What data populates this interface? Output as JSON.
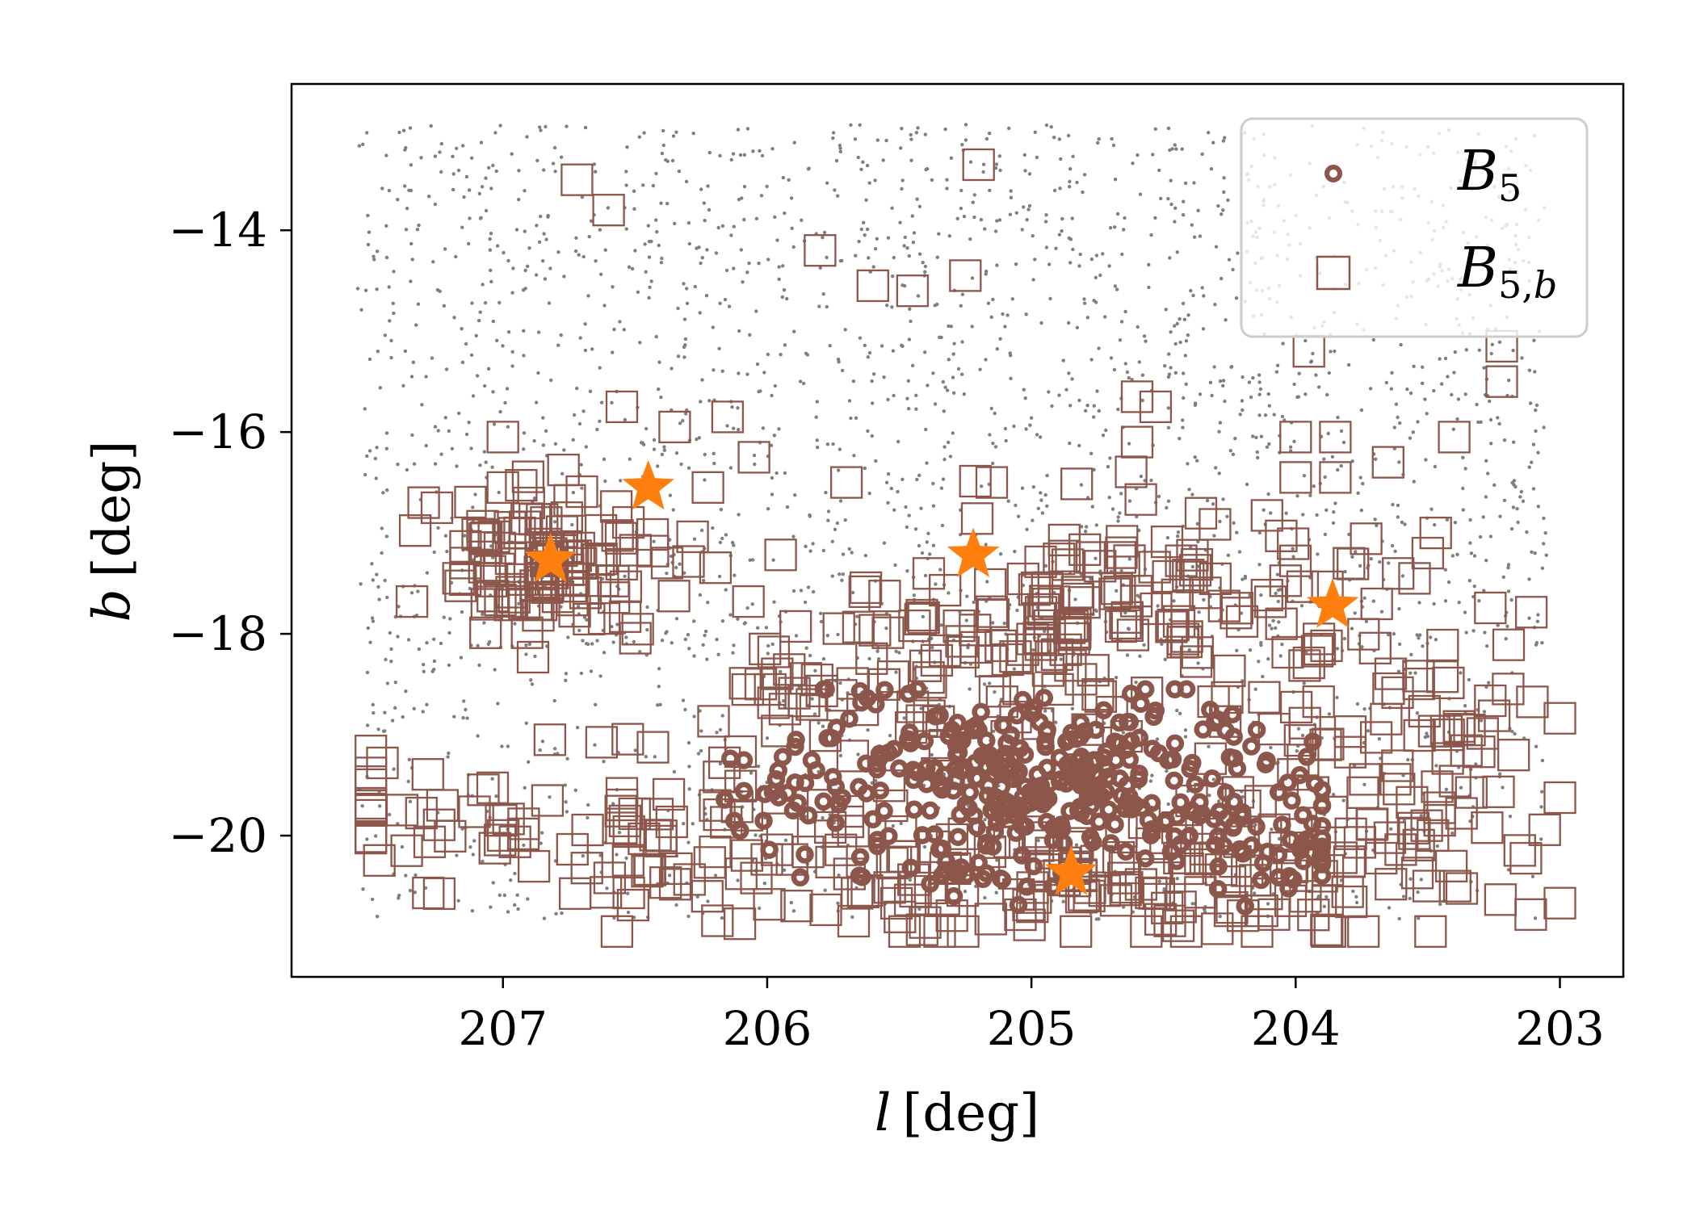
{
  "chart_data": {
    "type": "scatter",
    "xlabel_var": "l",
    "xlabel_unit": "[deg]",
    "ylabel_var": "b",
    "ylabel_unit": "[deg]",
    "xlim": [
      207.8,
      202.76
    ],
    "ylim": [
      -21.4,
      -12.55
    ],
    "x_ticks": [
      207,
      206,
      205,
      204,
      203
    ],
    "x_tick_labels": [
      "207",
      "206",
      "205",
      "204",
      "203"
    ],
    "y_ticks": [
      -14,
      -16,
      -18,
      -20
    ],
    "y_tick_labels": [
      "−14",
      "−16",
      "−18",
      "−20"
    ],
    "grid": false,
    "legend_position": "top-right",
    "colors": {
      "field": "#7f7f7f",
      "b5": "#8c564b",
      "b5b": "#8c564b",
      "stars": "#ff7f0e"
    },
    "legend": [
      {
        "key": "b5",
        "symbol": "ring",
        "label_main": "B",
        "label_sub": "5",
        "label_sub_italic": ""
      },
      {
        "key": "b5b",
        "symbol": "square",
        "label_main": "B",
        "label_sub": "5,",
        "label_sub_italic": "b"
      }
    ],
    "stars": [
      {
        "l": 206.82,
        "b": -17.27
      },
      {
        "l": 206.45,
        "b": -16.55
      },
      {
        "l": 205.22,
        "b": -17.22
      },
      {
        "l": 203.86,
        "b": -17.72
      },
      {
        "l": 204.85,
        "b": -20.37
      }
    ],
    "b5_clusters": [
      {
        "l": 205.0,
        "b": -19.5,
        "sl": 0.22,
        "sb": 0.35,
        "n": 140
      },
      {
        "l": 204.55,
        "b": -19.3,
        "sl": 0.3,
        "sb": 0.45,
        "n": 90
      },
      {
        "l": 205.45,
        "b": -19.4,
        "sl": 0.28,
        "sb": 0.5,
        "n": 70
      },
      {
        "l": 204.1,
        "b": -20.05,
        "sl": 0.25,
        "sb": 0.3,
        "n": 55
      },
      {
        "l": 205.75,
        "b": -19.6,
        "sl": 0.2,
        "sb": 0.45,
        "n": 35
      },
      {
        "l": 205.2,
        "b": -20.4,
        "sl": 0.12,
        "sb": 0.12,
        "n": 12
      }
    ],
    "b5b_clusters": [
      {
        "l": 206.85,
        "b": -17.3,
        "sl": 0.22,
        "sb": 0.35,
        "n": 110
      },
      {
        "l": 205.15,
        "b": -18.0,
        "sl": 0.45,
        "sb": 0.5,
        "n": 90
      },
      {
        "l": 204.4,
        "b": -17.6,
        "sl": 0.35,
        "sb": 0.45,
        "n": 70
      },
      {
        "l": 203.7,
        "b": -19.4,
        "sl": 0.4,
        "sb": 0.85,
        "n": 110
      },
      {
        "l": 206.2,
        "b": -20.2,
        "sl": 0.55,
        "sb": 0.45,
        "n": 80
      },
      {
        "l": 205.0,
        "b": -20.5,
        "sl": 0.5,
        "sb": 0.3,
        "n": 55
      },
      {
        "l": 204.4,
        "b": -20.4,
        "sl": 0.5,
        "sb": 0.35,
        "n": 60
      },
      {
        "l": 207.2,
        "b": -19.8,
        "sl": 0.25,
        "sb": 0.4,
        "n": 30
      },
      {
        "l": 205.9,
        "b": -18.8,
        "sl": 0.3,
        "sb": 0.4,
        "n": 25
      }
    ],
    "b5b_scattered": [
      [
        206.72,
        -13.5
      ],
      [
        206.6,
        -13.8
      ],
      [
        205.2,
        -13.35
      ],
      [
        205.8,
        -14.2
      ],
      [
        205.25,
        -14.45
      ],
      [
        205.6,
        -14.55
      ],
      [
        205.45,
        -14.6
      ],
      [
        203.22,
        -15.15
      ],
      [
        203.22,
        -15.5
      ],
      [
        203.95,
        -15.2
      ],
      [
        204.53,
        -15.75
      ],
      [
        204.6,
        -15.65
      ],
      [
        203.4,
        -16.05
      ],
      [
        203.85,
        -16.05
      ],
      [
        207.0,
        -16.05
      ],
      [
        206.55,
        -15.75
      ],
      [
        206.15,
        -15.85
      ],
      [
        206.35,
        -15.95
      ],
      [
        206.05,
        -16.25
      ],
      [
        204.0,
        -16.05
      ],
      [
        203.65,
        -16.3
      ],
      [
        204.6,
        -16.1
      ],
      [
        203.85,
        -16.45
      ],
      [
        205.15,
        -16.5
      ],
      [
        205.7,
        -16.5
      ],
      [
        204.0,
        -16.45
      ],
      [
        207.25,
        -16.75
      ],
      [
        207.0,
        -16.55
      ],
      [
        203.47,
        -17.0
      ],
      [
        203.5,
        -17.2
      ],
      [
        203.55,
        -17.45
      ],
      [
        207.3,
        -16.7
      ]
    ],
    "field_count": 2600
  }
}
